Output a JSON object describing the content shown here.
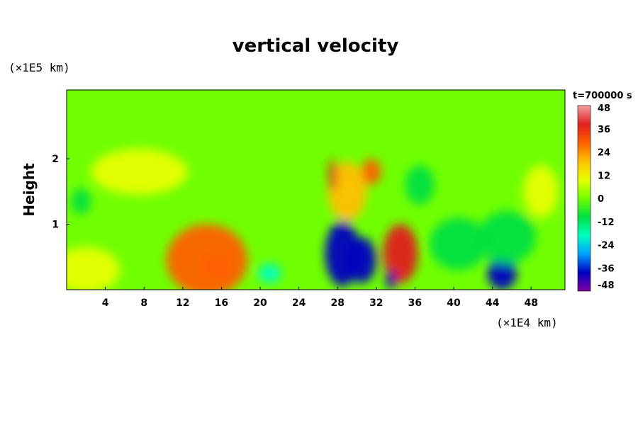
{
  "chart_data": {
    "type": "heatmap",
    "title": "vertical velocity",
    "ylabel": "Height",
    "xlabel": "",
    "x_unit_label": "(×1E4 km)",
    "y_unit_label": "(×1E5 km)",
    "time_label": "t=700000 s",
    "xlim": [
      0,
      51.5
    ],
    "ylim": [
      0,
      3.05
    ],
    "x_ticks": [
      4,
      8,
      12,
      16,
      20,
      24,
      28,
      32,
      36,
      40,
      44,
      48
    ],
    "y_ticks": [
      1,
      2
    ],
    "colorbar": {
      "min": -48,
      "max": 48,
      "ticks": [
        48,
        36,
        24,
        12,
        0,
        -12,
        -24,
        -36,
        -48
      ],
      "colors": [
        "#f4a0a0",
        "#e02020",
        "#ff6000",
        "#ffc000",
        "#e8ff00",
        "#70ff00",
        "#00e040",
        "#00ffc0",
        "#00a0ff",
        "#0000c0",
        "#8000a0"
      ]
    },
    "features": [
      {
        "x": 14.5,
        "y": 0.45,
        "value": 28,
        "rx": 4.2,
        "ry": 0.55
      },
      {
        "x": 15.5,
        "y": 0.35,
        "value": 32,
        "rx": 1.5,
        "ry": 0.2
      },
      {
        "x": 2.0,
        "y": 0.3,
        "value": 14,
        "rx": 3.5,
        "ry": 0.35
      },
      {
        "x": 7.5,
        "y": 1.8,
        "value": 7,
        "rx": 5.0,
        "ry": 0.35
      },
      {
        "x": 29.0,
        "y": 1.5,
        "value": 22,
        "rx": 2.0,
        "ry": 0.45
      },
      {
        "x": 27.5,
        "y": 1.75,
        "value": 38,
        "rx": 0.4,
        "ry": 0.25
      },
      {
        "x": 31.5,
        "y": 1.8,
        "value": 30,
        "rx": 1.0,
        "ry": 0.2
      },
      {
        "x": 34.5,
        "y": 0.55,
        "value": 42,
        "rx": 1.8,
        "ry": 0.45
      },
      {
        "x": 28.5,
        "y": 0.55,
        "value": -36,
        "rx": 1.8,
        "ry": 0.5
      },
      {
        "x": 30.5,
        "y": 0.45,
        "value": -34,
        "rx": 1.5,
        "ry": 0.35
      },
      {
        "x": 33.5,
        "y": 0.15,
        "value": -34,
        "rx": 0.5,
        "ry": 0.15
      },
      {
        "x": 45.0,
        "y": 0.25,
        "value": -40,
        "rx": 1.5,
        "ry": 0.25
      },
      {
        "x": 21.0,
        "y": 0.25,
        "value": -18,
        "rx": 1.2,
        "ry": 0.15
      },
      {
        "x": 1.5,
        "y": 1.35,
        "value": -12,
        "rx": 1.0,
        "ry": 0.2
      },
      {
        "x": 36.5,
        "y": 1.6,
        "value": -14,
        "rx": 1.5,
        "ry": 0.3
      },
      {
        "x": 45.5,
        "y": 0.8,
        "value": -12,
        "rx": 3.0,
        "ry": 0.4
      },
      {
        "x": 40.5,
        "y": 0.7,
        "value": -10,
        "rx": 3.0,
        "ry": 0.4
      },
      {
        "x": 49.0,
        "y": 1.5,
        "value": 6,
        "rx": 1.8,
        "ry": 0.4
      }
    ]
  }
}
